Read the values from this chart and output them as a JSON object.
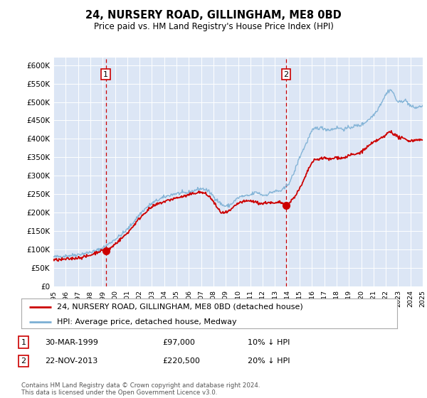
{
  "title": "24, NURSERY ROAD, GILLINGHAM, ME8 0BD",
  "subtitle": "Price paid vs. HM Land Registry's House Price Index (HPI)",
  "plot_bg_color": "#dce6f5",
  "ylim": [
    0,
    600000
  ],
  "ytick_vals": [
    0,
    50000,
    100000,
    150000,
    200000,
    250000,
    300000,
    350000,
    400000,
    450000,
    500000,
    550000,
    600000
  ],
  "ytick_labels": [
    "£0",
    "£50K",
    "£100K",
    "£150K",
    "£200K",
    "£250K",
    "£300K",
    "£350K",
    "£400K",
    "£450K",
    "£500K",
    "£550K",
    "£600K"
  ],
  "year_start": 1995,
  "year_end": 2025,
  "sale1_year": 1999.25,
  "sale1_price": 97000,
  "sale2_year": 2013.9,
  "sale2_price": 220500,
  "legend_line1": "24, NURSERY ROAD, GILLINGHAM, ME8 0BD (detached house)",
  "legend_line2": "HPI: Average price, detached house, Medway",
  "sale1_date": "30-MAR-1999",
  "sale1_price_str": "£97,000",
  "sale1_hpi": "10% ↓ HPI",
  "sale2_date": "22-NOV-2013",
  "sale2_price_str": "£220,500",
  "sale2_hpi": "20% ↓ HPI",
  "footer": "Contains HM Land Registry data © Crown copyright and database right 2024.\nThis data is licensed under the Open Government Licence v3.0.",
  "red_color": "#cc0000",
  "blue_color": "#7bafd4",
  "dashed_color": "#cc0000"
}
